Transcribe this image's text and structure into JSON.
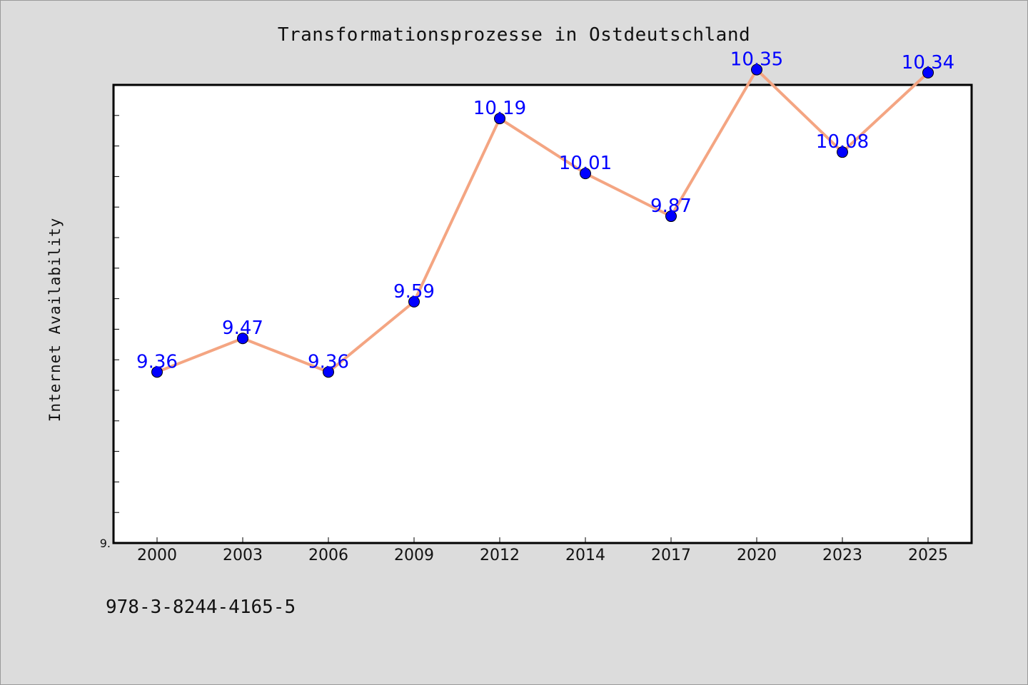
{
  "chart_data": {
    "type": "line",
    "title": "Transformationsprozesse in Ostdeutschland",
    "xlabel": "",
    "ylabel": "Internet Availability",
    "categories": [
      "2000",
      "2003",
      "2006",
      "2009",
      "2012",
      "2014",
      "2017",
      "2020",
      "2023",
      "2025"
    ],
    "series": [
      {
        "values": [
          9.36,
          9.47,
          9.36,
          9.59,
          10.19,
          10.01,
          9.87,
          10.35,
          10.08,
          10.34
        ],
        "data_labels": [
          "9.36",
          "9.47",
          "9.36",
          "9.59",
          "10.19",
          "10.01",
          "9.87",
          "10.35",
          "10.08",
          "10.34"
        ],
        "line_color": "#f4a582",
        "marker_color": "#0000ff"
      }
    ],
    "ylim": [
      8.8,
      10.3
    ],
    "y_tick_label": "9.",
    "grid": false,
    "legend": "none",
    "label_color": "#0000ff",
    "background": "#ffffff"
  },
  "footer": {
    "isbn": "978-3-8244-4165-5"
  }
}
